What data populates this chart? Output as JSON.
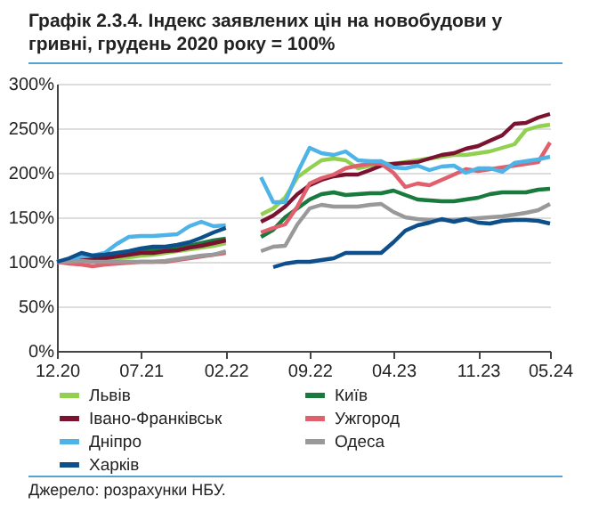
{
  "chart_data": {
    "type": "line",
    "title": "Графік 2.3.4. Індекс заявлених цін на новобудови у гривні, грудень 2020 року = 100%",
    "x": [
      "2020-12",
      "2021-01",
      "2021-02",
      "2021-03",
      "2021-04",
      "2021-05",
      "2021-06",
      "2021-07",
      "2021-08",
      "2021-09",
      "2021-10",
      "2021-11",
      "2021-12",
      "2022-01",
      "2022-02",
      "2022-03",
      "2022-04",
      "2022-05",
      "2022-06",
      "2022-07",
      "2022-08",
      "2022-09",
      "2022-10",
      "2022-11",
      "2022-12",
      "2023-01",
      "2023-02",
      "2023-03",
      "2023-04",
      "2023-05",
      "2023-06",
      "2023-07",
      "2023-08",
      "2023-09",
      "2023-10",
      "2023-11",
      "2023-12",
      "2024-01",
      "2024-02",
      "2024-03",
      "2024-04",
      "2024-05"
    ],
    "series": [
      {
        "name": "Львів",
        "color": "#92d050",
        "values": [
          null,
          null,
          null,
          102,
          103,
          104,
          105,
          107,
          108,
          110,
          112,
          114,
          116,
          118,
          121,
          null,
          null,
          153,
          160,
          172,
          195,
          205,
          214,
          216,
          214,
          205,
          208,
          210,
          210,
          212,
          214,
          216,
          218,
          220,
          220,
          222,
          224,
          228,
          232,
          248,
          252,
          254
        ]
      },
      {
        "name": "Київ",
        "color": "#1a7a3e",
        "values": [
          100,
          101,
          104,
          104,
          106,
          108,
          110,
          112,
          113,
          114,
          116,
          118,
          121,
          124,
          126,
          null,
          null,
          128,
          136,
          150,
          160,
          170,
          176,
          178,
          175,
          176,
          177,
          177,
          180,
          175,
          170,
          169,
          168,
          168,
          170,
          172,
          176,
          178,
          178,
          178,
          181,
          182
        ]
      },
      {
        "name": "Івано-Франківськ",
        "color": "#7b1230",
        "values": [
          100,
          100,
          103,
          104,
          104,
          106,
          108,
          110,
          110,
          112,
          113,
          116,
          118,
          121,
          124,
          null,
          null,
          145,
          152,
          162,
          176,
          186,
          192,
          196,
          198,
          198,
          203,
          208,
          210,
          211,
          212,
          216,
          220,
          222,
          227,
          230,
          236,
          242,
          255,
          256,
          262,
          266
        ]
      },
      {
        "name": "Ужгород",
        "color": "#e0606e",
        "values": [
          100,
          98,
          97,
          95,
          97,
          98,
          99,
          100,
          100,
          100,
          102,
          104,
          106,
          108,
          110,
          null,
          null,
          133,
          138,
          142,
          162,
          188,
          194,
          198,
          205,
          208,
          210,
          210,
          200,
          184,
          188,
          186,
          192,
          198,
          204,
          202,
          204,
          206,
          208,
          210,
          212,
          234
        ]
      },
      {
        "name": "Дніпро",
        "color": "#4eb3e6",
        "values": [
          100,
          102,
          106,
          107,
          110,
          120,
          128,
          129,
          129,
          130,
          131,
          140,
          145,
          140,
          141,
          null,
          null,
          195,
          167,
          167,
          200,
          228,
          222,
          220,
          224,
          214,
          213,
          213,
          206,
          205,
          208,
          203,
          207,
          208,
          200,
          205,
          205,
          201,
          211,
          213,
          215,
          218
        ]
      },
      {
        "name": "Одеса",
        "color": "#999999",
        "values": [
          100,
          100,
          101,
          100,
          100,
          100,
          100,
          100,
          100,
          101,
          103,
          105,
          107,
          108,
          112,
          null,
          null,
          112,
          117,
          118,
          142,
          160,
          164,
          162,
          162,
          162,
          164,
          165,
          156,
          150,
          148,
          147,
          147,
          147,
          148,
          149,
          150,
          151,
          153,
          155,
          158,
          165
        ]
      },
      {
        "name": "Харків",
        "color": "#0d4f8b",
        "values": [
          100,
          104,
          110,
          107,
          108,
          110,
          112,
          115,
          117,
          117,
          119,
          122,
          127,
          133,
          138,
          null,
          null,
          null,
          94,
          98,
          100,
          100,
          102,
          104,
          110,
          110,
          110,
          110,
          122,
          135,
          141,
          144,
          148,
          145,
          148,
          144,
          143,
          146,
          147,
          147,
          146,
          143
        ]
      }
    ],
    "xlim": [
      "2020-12",
      "2024-05"
    ],
    "xticks": [
      {
        "value": "2020-12",
        "label": "12.20"
      },
      {
        "value": "2021-07",
        "label": "07.21"
      },
      {
        "value": "2022-02",
        "label": "02.22"
      },
      {
        "value": "2022-09",
        "label": "09.22"
      },
      {
        "value": "2023-04",
        "label": "04.23"
      },
      {
        "value": "2023-11",
        "label": "11.23"
      },
      {
        "value": "2024-05",
        "label": "05.24"
      }
    ],
    "ylim": [
      0,
      300
    ],
    "yticks": [
      {
        "value": 0,
        "label": "0%"
      },
      {
        "value": 50,
        "label": "50%"
      },
      {
        "value": 100,
        "label": "100%"
      },
      {
        "value": 150,
        "label": "150%"
      },
      {
        "value": 200,
        "label": "200%"
      },
      {
        "value": 250,
        "label": "250%"
      },
      {
        "value": 300,
        "label": "300%"
      }
    ],
    "grid": "y",
    "legend": "bottom",
    "line_style": "solid",
    "marker": "none",
    "annotations": [
      "Джерело: розрахунки НБУ."
    ]
  }
}
